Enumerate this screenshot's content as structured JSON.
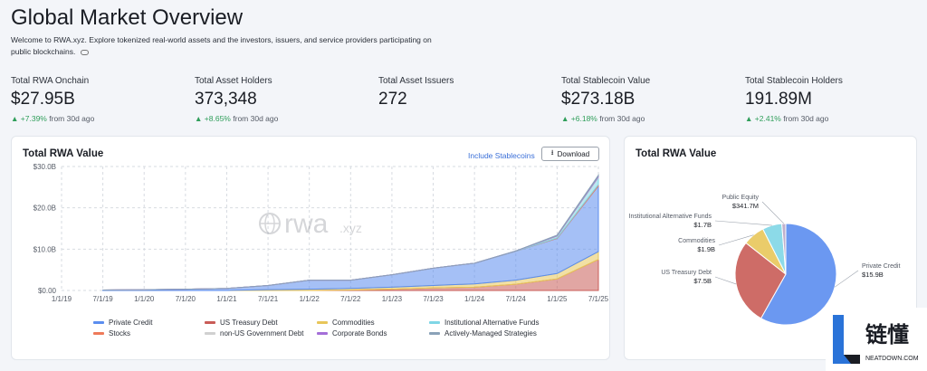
{
  "page": {
    "title": "Global Market Overview",
    "subtitle": "Welcome to RWA.xyz. Explore tokenized real-world assets and the investors, issuers, and service providers participating on public blockchains."
  },
  "stats": [
    {
      "label": "Total RWA Onchain",
      "value": "$27.95B",
      "change": "+7.39%",
      "suffix": "from 30d ago"
    },
    {
      "label": "Total Asset Holders",
      "value": "373,348",
      "change": "+8.65%",
      "suffix": "from 30d ago"
    },
    {
      "label": "Total Asset Issuers",
      "value": "272",
      "change": "",
      "suffix": ""
    },
    {
      "label": "Total Stablecoin Value",
      "value": "$273.18B",
      "change": "+6.18%",
      "suffix": "from 30d ago"
    },
    {
      "label": "Total Stablecoin Holders",
      "value": "191.89M",
      "change": "+2.41%",
      "suffix": "from 30d ago"
    }
  ],
  "area_card": {
    "title": "Total RWA Value",
    "include_link": "Include Stablecoins",
    "download_label": "Download",
    "watermark": "rwa",
    "watermark_suffix": ".xyz"
  },
  "pie_card": {
    "title": "Total RWA Value"
  },
  "badge": {
    "brand": "链懂",
    "site": "NEATDOWN.COM"
  },
  "colors": {
    "private_credit": "#5b8def",
    "us_treasury": "#c95c57",
    "commodities": "#e8c65a",
    "institutional_alt": "#7fd6e6",
    "stocks": "#ee7a5a",
    "non_us_gov": "#d0d0d0",
    "corporate_bonds": "#a46fd8",
    "active_strategies": "#8aa2b8",
    "public_equity": "#b9a7c7"
  },
  "chart_data": [
    {
      "type": "area",
      "title": "Total RWA Value",
      "stacked": true,
      "ylim": [
        0,
        30
      ],
      "yticks": [
        "$0.00",
        "$10.0B",
        "$20.0B",
        "$30.0B"
      ],
      "yunits": "billions USD",
      "x": [
        "7/1/19",
        "1/1/20",
        "7/1/20",
        "1/1/21",
        "7/1/21",
        "1/1/22",
        "7/1/22",
        "1/1/23",
        "7/1/23",
        "1/1/24",
        "7/1/24",
        "1/1/25",
        "7/1/25"
      ],
      "xticks": [
        "1/1/19",
        "7/1/19",
        "1/1/20",
        "7/1/20",
        "1/1/21",
        "7/1/21",
        "1/1/22",
        "7/1/22",
        "1/1/23",
        "7/1/23",
        "1/1/24",
        "7/1/24",
        "1/1/25",
        "7/1/25"
      ],
      "series": [
        {
          "name": "US Treasury Debt",
          "color": "#c95c57",
          "values": [
            0,
            0,
            0,
            0,
            0,
            0,
            0.1,
            0.3,
            0.6,
            0.8,
            1.5,
            2.8,
            7.5
          ]
        },
        {
          "name": "Commodities",
          "color": "#e8c65a",
          "values": [
            0,
            0,
            0,
            0,
            0.2,
            0.3,
            0.4,
            0.5,
            0.6,
            0.8,
            1.0,
            1.3,
            1.9
          ]
        },
        {
          "name": "Private Credit",
          "color": "#5b8def",
          "values": [
            0.1,
            0.2,
            0.3,
            0.5,
            1.0,
            2.2,
            2.0,
            3.0,
            4.2,
            5.0,
            7.0,
            8.5,
            15.9
          ]
        },
        {
          "name": "Stocks",
          "color": "#ee7a5a",
          "values": [
            0,
            0,
            0,
            0,
            0,
            0,
            0,
            0,
            0,
            0,
            0,
            0.1,
            0.3
          ]
        },
        {
          "name": "Institutional Alternative Funds",
          "color": "#7fd6e6",
          "values": [
            0,
            0,
            0,
            0,
            0,
            0,
            0,
            0,
            0,
            0,
            0.05,
            0.4,
            1.7
          ]
        },
        {
          "name": "non-US Government Debt",
          "color": "#d0d0d0",
          "values": [
            0,
            0,
            0,
            0,
            0,
            0,
            0,
            0,
            0,
            0,
            0,
            0.1,
            0.2
          ]
        },
        {
          "name": "Corporate Bonds",
          "color": "#a46fd8",
          "values": [
            0,
            0,
            0,
            0,
            0,
            0,
            0,
            0,
            0,
            0,
            0,
            0.1,
            0.2
          ]
        },
        {
          "name": "Actively-Managed Strategies",
          "color": "#8aa2b8",
          "values": [
            0,
            0,
            0,
            0,
            0,
            0,
            0,
            0,
            0,
            0,
            0,
            0.1,
            0.2
          ]
        }
      ],
      "legend": [
        {
          "name": "Private Credit",
          "color": "#5b8def"
        },
        {
          "name": "US Treasury Debt",
          "color": "#c95c57"
        },
        {
          "name": "Commodities",
          "color": "#e8c65a"
        },
        {
          "name": "Institutional Alternative Funds",
          "color": "#7fd6e6"
        },
        {
          "name": "Stocks",
          "color": "#ee7a5a"
        },
        {
          "name": "non-US Government Debt",
          "color": "#d0d0d0"
        },
        {
          "name": "Corporate Bonds",
          "color": "#a46fd8"
        },
        {
          "name": "Actively-Managed Strategies",
          "color": "#8aa2b8"
        }
      ],
      "grid": true,
      "legend_position": "bottom"
    },
    {
      "type": "pie",
      "title": "Total RWA Value",
      "slices": [
        {
          "name": "Private Credit",
          "value": 15.9,
          "label": "$15.9B",
          "color": "#5b8def"
        },
        {
          "name": "US Treasury Debt",
          "value": 7.5,
          "label": "$7.5B",
          "color": "#c95c57"
        },
        {
          "name": "Commodities",
          "value": 1.9,
          "label": "$1.9B",
          "color": "#e8c65a"
        },
        {
          "name": "Institutional Alternative Funds",
          "value": 1.7,
          "label": "$1.7B",
          "color": "#7fd6e6"
        },
        {
          "name": "Public Equity",
          "value": 0.3417,
          "label": "$341.7M",
          "color": "#b9a7c7"
        }
      ]
    }
  ]
}
